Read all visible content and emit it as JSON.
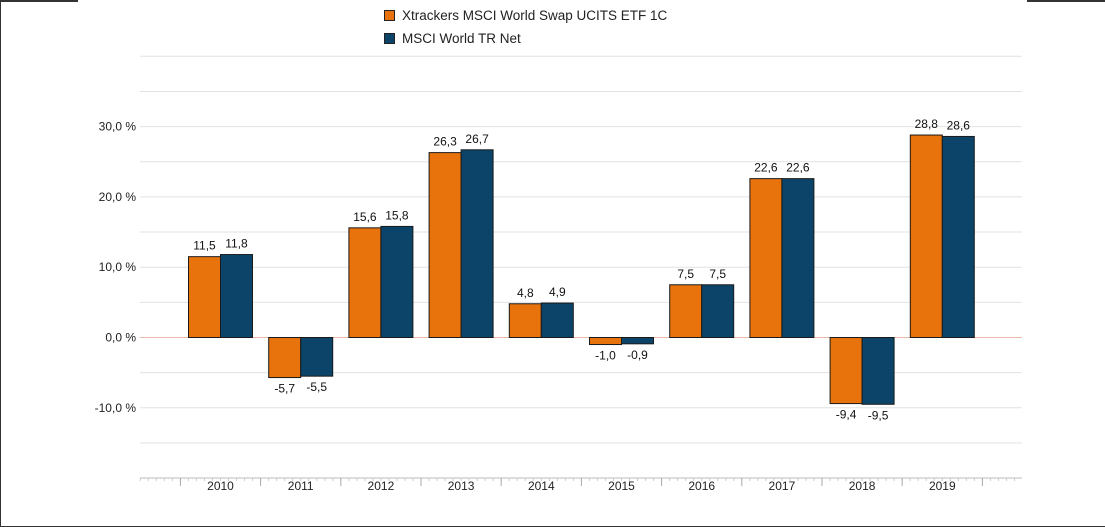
{
  "chart_data": {
    "type": "bar",
    "categories": [
      "2010",
      "2011",
      "2012",
      "2013",
      "2014",
      "2015",
      "2016",
      "2017",
      "2018",
      "2019"
    ],
    "series": [
      {
        "name": "Xtrackers MSCI World Swap UCITS ETF  1C",
        "color": "#e8730c",
        "values": [
          11.5,
          -5.7,
          15.6,
          26.3,
          4.8,
          -1.0,
          7.5,
          22.6,
          -9.4,
          28.8
        ],
        "labels": [
          "11,5",
          "-5,7",
          "15,6",
          "26,3",
          "4,8",
          "-1,0",
          "7,5",
          "22,6",
          "-9,4",
          "28,8"
        ]
      },
      {
        "name": "MSCI World TR Net",
        "color": "#0b4468",
        "values": [
          11.8,
          -5.5,
          15.8,
          26.7,
          4.9,
          -0.9,
          7.5,
          22.6,
          -9.5,
          28.6
        ],
        "labels": [
          "11,8",
          "-5,5",
          "15,8",
          "26,7",
          "4,9",
          "-0,9",
          "7,5",
          "22,6",
          "-9,5",
          "28,6"
        ]
      }
    ],
    "yticks": [
      {
        "value": 30,
        "label": "30,0 %"
      },
      {
        "value": 20,
        "label": "20,0 %"
      },
      {
        "value": 10,
        "label": "10,0 %"
      },
      {
        "value": 0,
        "label": "0,0 %"
      },
      {
        "value": -10,
        "label": "-10,0 %"
      }
    ],
    "ylim": [
      -19,
      40
    ],
    "grid": true,
    "legend_position": "top-center",
    "title": "",
    "xlabel": "",
    "ylabel": ""
  }
}
